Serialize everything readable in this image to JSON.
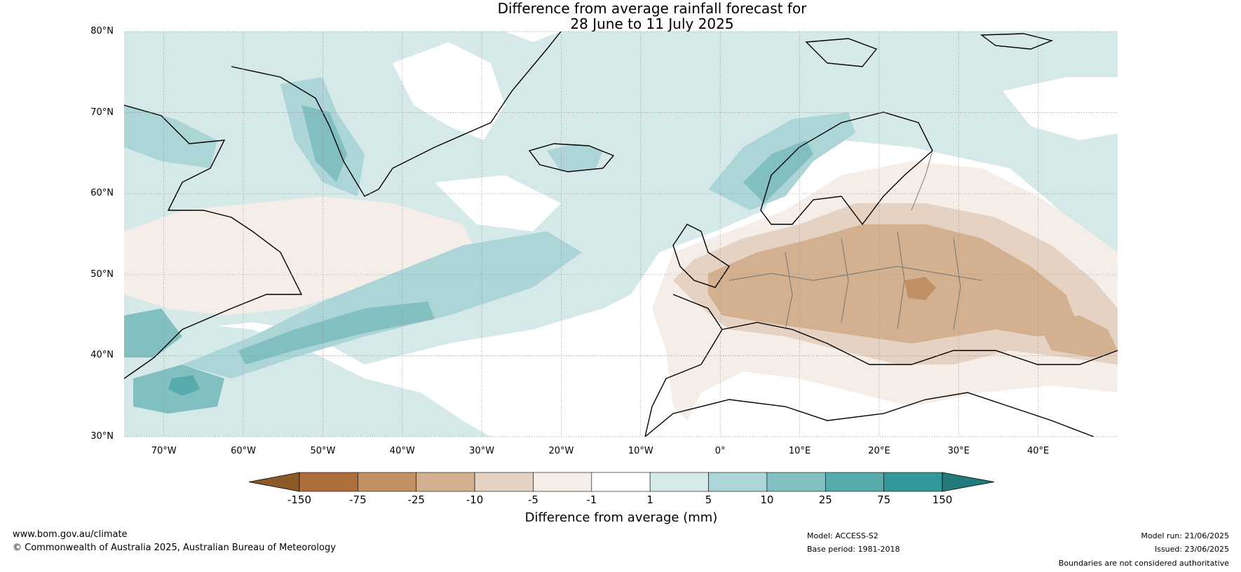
{
  "title": {
    "line1": "Difference from average rainfall forecast for",
    "line2": "28 June to 11 July 2025"
  },
  "map": {
    "lat_ticks": [
      "80°N",
      "70°N",
      "60°N",
      "50°N",
      "40°N",
      "30°N"
    ],
    "lon_ticks": [
      "70°W",
      "60°W",
      "50°W",
      "40°W",
      "30°W",
      "20°W",
      "10°W",
      "0°",
      "10°E",
      "20°E",
      "30°E",
      "40°E"
    ],
    "lat_range": [
      30,
      80
    ],
    "lon_range": [
      -75,
      50
    ],
    "gridlines": true
  },
  "colorbar": {
    "ticks": [
      "-150",
      "-75",
      "-25",
      "-10",
      "-5",
      "-1",
      "1",
      "5",
      "10",
      "25",
      "75",
      "150"
    ],
    "colors": [
      "#8c5a28",
      "#ad703c",
      "#c18f64",
      "#d3b190",
      "#e5d2c2",
      "#f4ede8",
      "#ffffff",
      "#d5e9e9",
      "#abd5d7",
      "#82bfc1",
      "#58abac",
      "#339898",
      "#227a7b"
    ],
    "label": "Difference from average (mm)",
    "extend": "both"
  },
  "footer": {
    "website": "www.bom.gov.au/climate",
    "copyright": "© Commonwealth of Australia 2025, Australian Bureau of Meteorology",
    "model": "Model: ACCESS-S2",
    "base_period": "Base period: 1981-2018",
    "model_run": "Model run: 21/06/2025",
    "issued": "Issued: 23/06/2025",
    "disclaimer": "Boundaries are not considered authoritative"
  }
}
